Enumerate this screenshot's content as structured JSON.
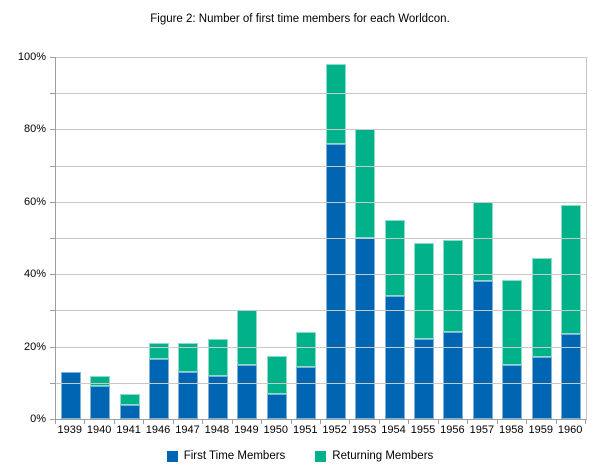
{
  "title": "Figure 2: Number of first time members for each Worldcon.",
  "chart_data": {
    "type": "bar",
    "stacked": true,
    "title": "Figure 2: Number of first time members for each Worldcon.",
    "categories": [
      "1939",
      "1940",
      "1941",
      "1946",
      "1947",
      "1948",
      "1949",
      "1950",
      "1951",
      "1952",
      "1953",
      "1954",
      "1955",
      "1956",
      "1957",
      "1958",
      "1959",
      "1960"
    ],
    "series": [
      {
        "name": "First Time Members",
        "color": "#0066b3",
        "border_color": "#7fb2d9",
        "values": [
          13,
          9,
          4,
          16.5,
          13,
          12,
          15,
          7,
          14.5,
          76,
          50,
          34,
          22,
          24,
          38,
          15,
          17,
          23.5
        ]
      },
      {
        "name": "Returning Members",
        "color": "#00b189",
        "border_color": "#8fdcc6",
        "values": [
          0,
          3,
          3,
          4.5,
          8,
          10,
          15,
          10.5,
          9.5,
          22,
          30,
          21,
          26.5,
          25.5,
          22,
          23.5,
          27.5,
          35.5
        ]
      }
    ],
    "stack_totals": [
      13,
      12,
      7,
      21,
      21,
      22,
      30,
      17.5,
      24,
      98,
      80,
      55,
      48.5,
      49.5,
      60,
      38.5,
      44.5,
      59
    ],
    "xlabel": "",
    "ylabel": "",
    "y_axis": {
      "min": 0,
      "max": 100,
      "unit": "%",
      "major_step": 20,
      "minor_step": 10,
      "tick_labels": [
        "0%",
        "20%",
        "40%",
        "60%",
        "80%",
        "100%"
      ]
    },
    "grid": {
      "horizontal_every": 10,
      "color": "#c9c9c9"
    },
    "axis_color": "#9e9e9e",
    "legend_position": "bottom"
  }
}
